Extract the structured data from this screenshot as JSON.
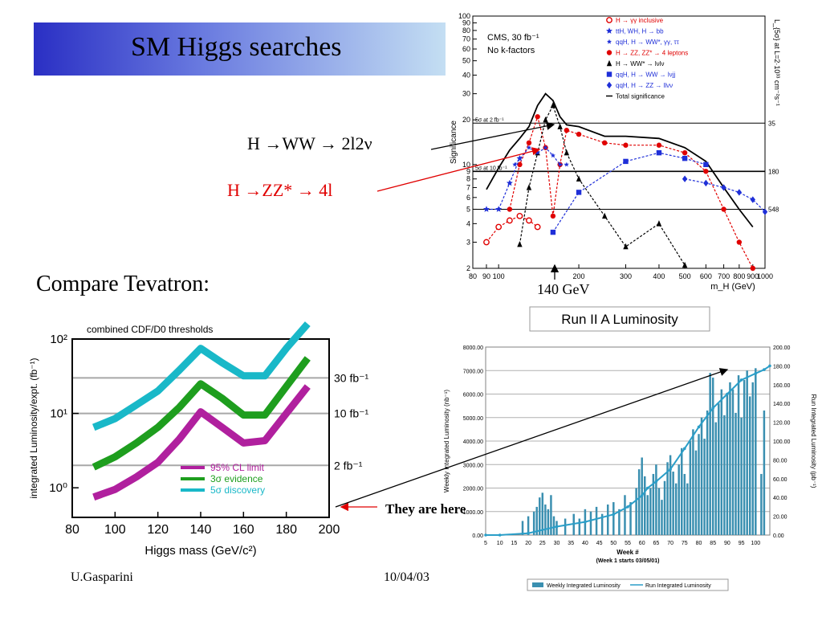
{
  "slide": {
    "title": "SM Higgs searches",
    "annotations": {
      "ww": "H →WW → 2l2ν",
      "zz": "H →ZZ* → 4l",
      "compare": "Compare Tevatron:",
      "mass_marker": "140 GeV",
      "here": "They are here"
    },
    "footer": {
      "author": "U.Gasparini",
      "date": "10/04/03"
    },
    "colors": {
      "title_dark": "#2a2fc4",
      "title_light": "#c9e4f4",
      "zz_red": "#e00000"
    }
  },
  "chart_data": [
    {
      "type": "line",
      "title": "",
      "box_text": [
        "CMS, 30 fb⁻¹",
        "No k-factors"
      ],
      "xlabel": "m_H (GeV)",
      "ylabel": "Significance",
      "right_axis_label": "L_{5σ} at L=2·10³³ cm⁻²s⁻¹",
      "xscale": "log",
      "yscale": "log",
      "xlim": [
        80,
        1000
      ],
      "ylim": [
        2,
        100
      ],
      "xticks": [
        "80",
        "90",
        "100",
        "200",
        "300",
        "400",
        "500",
        "600",
        "700",
        "800",
        "900",
        "1000"
      ],
      "yticks": [
        "2",
        "3",
        "4",
        "5",
        "6",
        "7",
        "8",
        "9",
        "10",
        "20",
        "30",
        "40",
        "50",
        "60",
        "70",
        "80",
        "90",
        "100"
      ],
      "hlines": [
        {
          "y": 19,
          "label": "5σ at 2 fb⁻¹",
          "right": "35"
        },
        {
          "y": 9,
          "label": "5σ at 10 fb⁻¹",
          "right": "180"
        },
        {
          "y": 5,
          "label": "",
          "right": "548"
        }
      ],
      "legend": [
        {
          "name": "H → γγ inclusive",
          "color": "#e00000",
          "marker": "open-circle"
        },
        {
          "name": "ttH, WH, H → bb",
          "color": "#1f2fd8",
          "marker": "star"
        },
        {
          "name": "qqH, H → WW*, γγ, ττ",
          "color": "#1f2fd8",
          "marker": "star-small"
        },
        {
          "name": "H → ZZ, ZZ* → 4 leptons",
          "color": "#e00000",
          "marker": "circle"
        },
        {
          "name": "H → WW* → lνlν",
          "color": "#000000",
          "marker": "triangle"
        },
        {
          "name": "qqH, H → WW → lνjj",
          "color": "#1f2fd8",
          "marker": "square"
        },
        {
          "name": "qqH, H → ZZ → llνν",
          "color": "#1f2fd8",
          "marker": "diamond"
        },
        {
          "name": "Total significance",
          "color": "#000000",
          "marker": "line"
        }
      ],
      "series": [
        {
          "name": "Total significance",
          "color": "#000000",
          "marker": "none",
          "x": [
            90,
            100,
            110,
            120,
            130,
            140,
            150,
            160,
            170,
            180,
            200,
            250,
            300,
            400,
            500,
            600,
            700,
            800,
            900
          ],
          "y": [
            6.8,
            9.5,
            12.5,
            15,
            18,
            25,
            30,
            27,
            21,
            18.5,
            18,
            15.5,
            15.5,
            15,
            13,
            10.5,
            7,
            5,
            3.8
          ]
        },
        {
          "name": "H → γγ inclusive",
          "color": "#e00000",
          "marker": "open-circle",
          "x": [
            90,
            100,
            110,
            120,
            130,
            140
          ],
          "y": [
            3,
            3.8,
            4.2,
            4.5,
            4.2,
            3.8
          ]
        },
        {
          "name": "H → ZZ, ZZ* → 4 leptons",
          "color": "#e00000",
          "marker": "circle",
          "x": [
            110,
            120,
            130,
            140,
            150,
            160,
            170,
            180,
            200,
            250,
            300,
            400,
            500,
            600,
            700,
            800,
            900
          ],
          "y": [
            5,
            10,
            14,
            21,
            13,
            4.5,
            10,
            17,
            16,
            14,
            13.5,
            13.5,
            12,
            9,
            5,
            3,
            2
          ]
        },
        {
          "name": "H → WW* → lνlν",
          "color": "#000000",
          "marker": "triangle",
          "x": [
            120,
            130,
            140,
            150,
            160,
            170,
            180,
            200,
            250,
            300,
            400,
            500
          ],
          "y": [
            2.9,
            7,
            12,
            20,
            25,
            18,
            12,
            8,
            4.5,
            2.8,
            4,
            2.1
          ]
        },
        {
          "name": "ttH, WH, H → bb",
          "color": "#1f2fd8",
          "marker": "star",
          "x": [
            90,
            100,
            110,
            120
          ],
          "y": [
            5,
            5,
            7.5,
            11
          ]
        },
        {
          "name": "qqH, H → WW*, γγ, ττ",
          "color": "#1f2fd8",
          "marker": "star-small",
          "x": [
            115,
            130,
            140,
            150,
            160,
            170,
            180
          ],
          "y": [
            10,
            13,
            12,
            13,
            11.5,
            10,
            10
          ]
        },
        {
          "name": "qqH, H → WW → lνjj",
          "color": "#1f2fd8",
          "marker": "square",
          "x": [
            160,
            200,
            300,
            400,
            500,
            600
          ],
          "y": [
            3.5,
            6.5,
            10.5,
            12,
            11,
            10
          ]
        },
        {
          "name": "qqH, H → ZZ → llνν",
          "color": "#1f2fd8",
          "marker": "diamond",
          "x": [
            500,
            600,
            700,
            800,
            900,
            1000
          ],
          "y": [
            8,
            7.5,
            7,
            6.5,
            5.8,
            4.8
          ]
        }
      ]
    },
    {
      "type": "line",
      "title": "combined CDF/D0 thresholds",
      "xlabel": "Higgs mass (GeV/c²)",
      "ylabel": "integrated Luminosity/expt. (fb⁻¹)",
      "yscale": "log",
      "xlim": [
        80,
        200
      ],
      "ylim": [
        0.4,
        100
      ],
      "xticks": [
        "80",
        "100",
        "120",
        "140",
        "160",
        "180",
        "200"
      ],
      "yticks": [
        "10⁰",
        "10¹",
        "10²"
      ],
      "hlines": [
        {
          "y": 30,
          "label": "30 fb⁻¹"
        },
        {
          "y": 10,
          "label": "10 fb⁻¹"
        },
        {
          "y": 2,
          "label": "2 fb⁻¹"
        }
      ],
      "series": [
        {
          "name": "95% CL limit",
          "color": "#b0209e",
          "x": [
            90,
            100,
            110,
            120,
            130,
            140,
            150,
            160,
            170,
            180,
            190
          ],
          "y": [
            0.75,
            0.95,
            1.4,
            2.2,
            4.5,
            10.5,
            6.5,
            4,
            4.3,
            10,
            23
          ]
        },
        {
          "name": "3σ evidence",
          "color": "#1e9e1e",
          "x": [
            90,
            100,
            110,
            120,
            130,
            140,
            150,
            160,
            170,
            180,
            190
          ],
          "y": [
            1.9,
            2.6,
            4,
            6.5,
            12,
            25,
            16,
            9.5,
            9.5,
            23,
            55
          ]
        },
        {
          "name": "5σ discovery",
          "color": "#19b8c8",
          "x": [
            90,
            100,
            110,
            120,
            130,
            140,
            150,
            160,
            170,
            180,
            190
          ],
          "y": [
            6.5,
            8.5,
            13,
            20,
            38,
            75,
            48,
            32,
            32,
            75,
            160
          ]
        }
      ]
    },
    {
      "type": "bar",
      "title": "Run II A Luminosity",
      "xlabel": "Week #",
      "xlabel_sub": "(Week 1 starts 03/05/01)",
      "ylabel": "Weekly Integrated Luminosity (nb⁻¹)",
      "y2label": "Run Integrated Luminosity (pb⁻¹)",
      "xlim": [
        5,
        105
      ],
      "ylim": [
        0,
        8000
      ],
      "y2lim": [
        0,
        200
      ],
      "xticks": [
        "5",
        "10",
        "15",
        "20",
        "25",
        "30",
        "35",
        "40",
        "45",
        "50",
        "55",
        "60",
        "65",
        "70",
        "75",
        "80",
        "85",
        "90",
        "95",
        "100"
      ],
      "yticks": [
        "0.00",
        "1000.00",
        "2000.00",
        "3000.00",
        "4000.00",
        "5000.00",
        "6000.00",
        "7000.00",
        "8000.00"
      ],
      "y2ticks": [
        "0.00",
        "20.00",
        "40.00",
        "60.00",
        "80.00",
        "100.00",
        "120.00",
        "140.00",
        "160.00",
        "180.00",
        "200.00"
      ],
      "legend": [
        "Weekly Integrated Luminosity",
        "Run Integrated Luminosity"
      ],
      "series": [
        {
          "name": "Weekly Integrated Luminosity",
          "color": "#3a8fb0",
          "x": [
            18,
            20,
            22,
            23,
            24,
            25,
            26,
            27,
            28,
            29,
            30,
            33,
            36,
            38,
            40,
            42,
            44,
            46,
            48,
            50,
            52,
            54,
            56,
            58,
            59,
            60,
            61,
            62,
            63,
            64,
            65,
            66,
            67,
            68,
            69,
            70,
            71,
            72,
            73,
            74,
            75,
            76,
            77,
            78,
            79,
            80,
            81,
            82,
            83,
            84,
            85,
            86,
            87,
            88,
            89,
            90,
            91,
            92,
            93,
            94,
            95,
            96,
            97,
            98,
            99,
            100,
            102,
            103
          ],
          "y": [
            600,
            800,
            1000,
            1200,
            1600,
            1800,
            1300,
            1100,
            1700,
            800,
            600,
            700,
            900,
            700,
            1100,
            1000,
            1200,
            900,
            1300,
            1400,
            1100,
            1700,
            1400,
            2000,
            2800,
            3300,
            2500,
            1700,
            2000,
            2600,
            3000,
            2000,
            1500,
            2300,
            3100,
            3400,
            2700,
            2200,
            3000,
            3700,
            2600,
            2200,
            4000,
            4500,
            3600,
            4300,
            5000,
            4100,
            5300,
            6900,
            6700,
            4800,
            5600,
            6200,
            5100,
            6000,
            6500,
            6200,
            5200,
            6800,
            5000,
            6600,
            7000,
            5900,
            6500,
            7100,
            2600,
            5300
          ]
        },
        {
          "name": "Run Integrated Luminosity",
          "color": "#2a9ec8",
          "x": [
            5,
            10,
            20,
            30,
            40,
            50,
            55,
            60,
            62,
            65,
            70,
            75,
            80,
            85,
            90,
            95,
            100,
            103,
            105
          ],
          "y": [
            0,
            0,
            2,
            9,
            14,
            22,
            30,
            42,
            50,
            57,
            70,
            92,
            115,
            135,
            150,
            165,
            172,
            176,
            180
          ]
        }
      ]
    }
  ]
}
